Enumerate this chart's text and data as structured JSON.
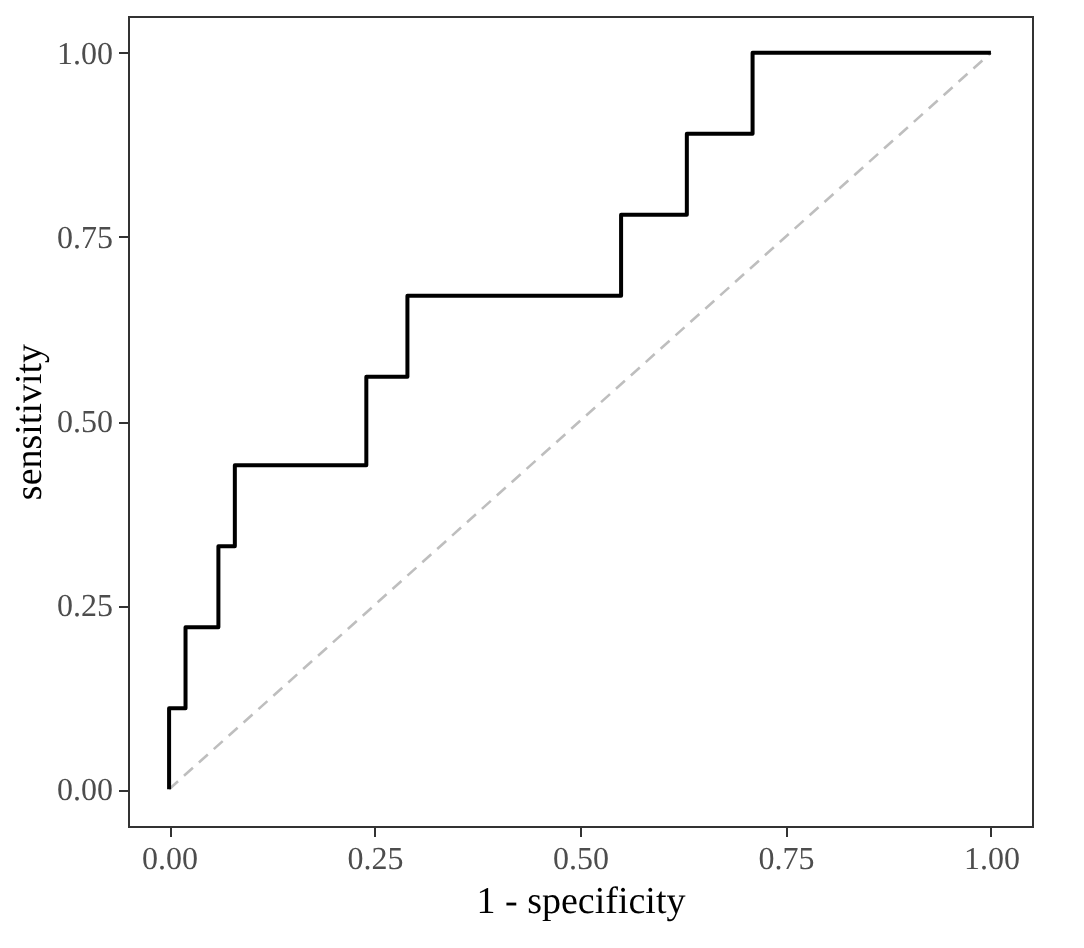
{
  "chart_data": {
    "type": "step",
    "xlabel": "1 - specificity",
    "ylabel": "sensitivity",
    "xlim": [
      -0.05,
      1.05
    ],
    "ylim": [
      -0.05,
      1.05
    ],
    "xticks": [
      {
        "value": 0,
        "label": "0.00"
      },
      {
        "value": 0.25,
        "label": "0.25"
      },
      {
        "value": 0.5,
        "label": "0.50"
      },
      {
        "value": 0.75,
        "label": "0.75"
      },
      {
        "value": 1,
        "label": "1.00"
      }
    ],
    "yticks": [
      {
        "value": 0,
        "label": "0.00"
      },
      {
        "value": 0.25,
        "label": "0.25"
      },
      {
        "value": 0.5,
        "label": "0.50"
      },
      {
        "value": 0.75,
        "label": "0.75"
      },
      {
        "value": 1,
        "label": "1.00"
      }
    ],
    "grid": false,
    "series": [
      {
        "type": "line",
        "color": "#bebebe",
        "line_style": "dashed",
        "x": [
          0,
          1
        ],
        "values": [
          0,
          1
        ]
      },
      {
        "color": "#000000",
        "line_style": "solid",
        "x": [
          0,
          0,
          0.02,
          0.06,
          0.08,
          0.24,
          0.29,
          0.55,
          0.63,
          0.71,
          1
        ],
        "values": [
          0,
          0.11,
          0.22,
          0.33,
          0.44,
          0.56,
          0.67,
          0.78,
          0.89,
          1,
          1
        ]
      }
    ]
  }
}
